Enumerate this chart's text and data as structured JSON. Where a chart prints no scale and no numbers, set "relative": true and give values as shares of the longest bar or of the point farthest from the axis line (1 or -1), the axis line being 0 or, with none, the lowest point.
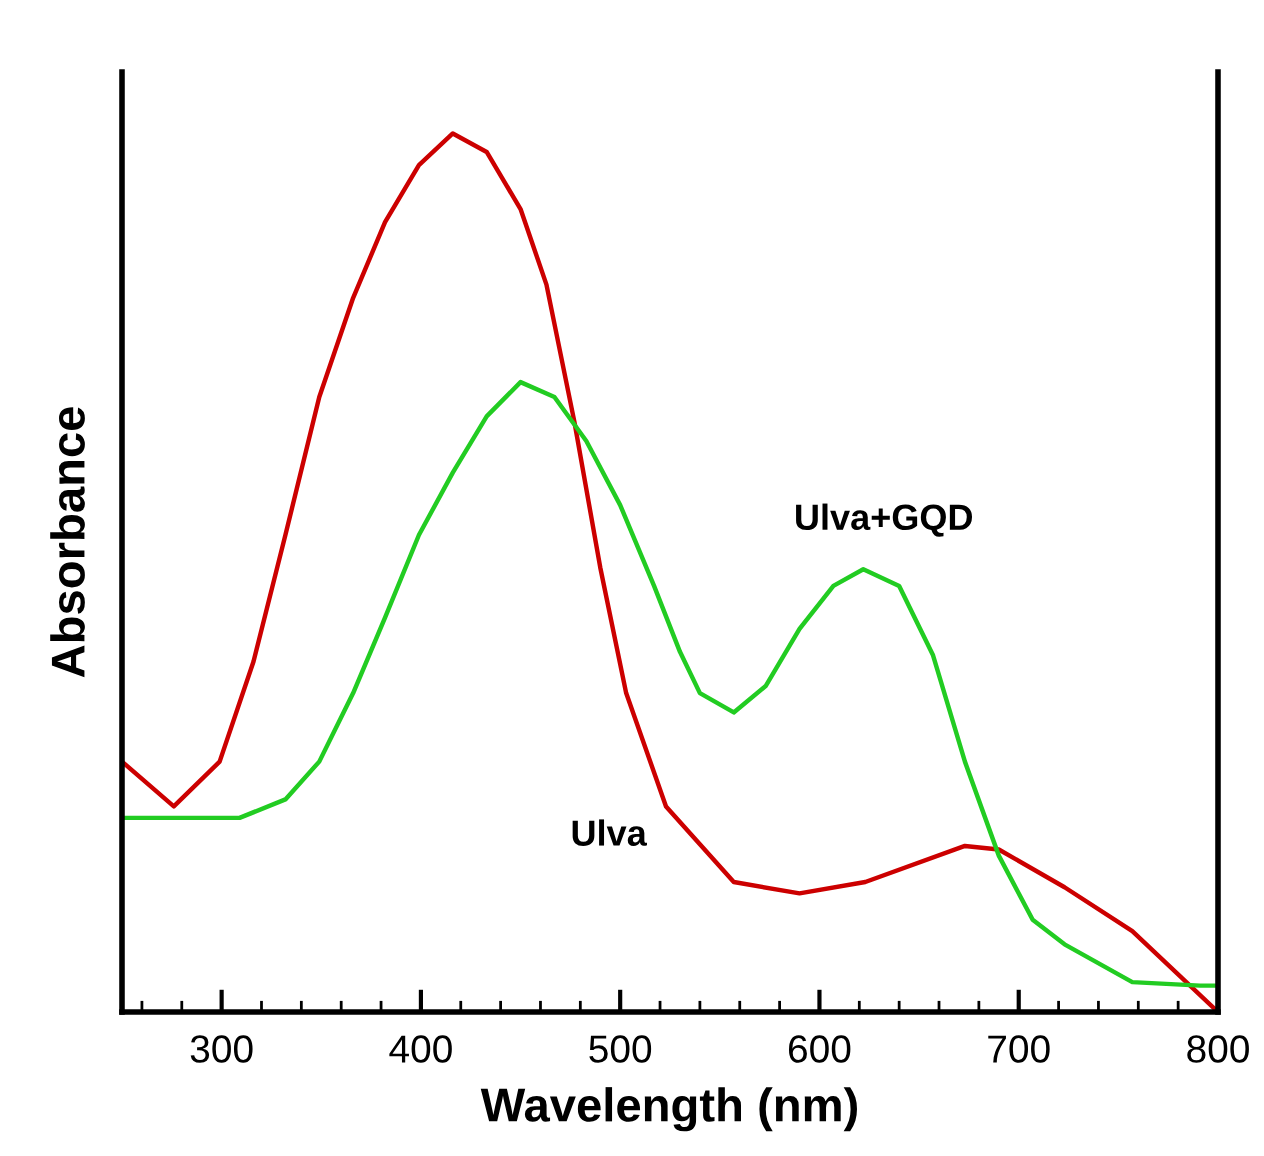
{
  "chart_data": {
    "type": "line",
    "relative": true,
    "xlabel": "Wavelength (nm)",
    "ylabel": "Absorbance",
    "xlim": [
      250,
      800
    ],
    "xticks": [
      {
        "value": 260,
        "label": null
      },
      {
        "value": 280,
        "label": null
      },
      300,
      {
        "value": 320,
        "label": null
      },
      {
        "value": 340,
        "label": null
      },
      {
        "value": 360,
        "label": null
      },
      {
        "value": 380,
        "label": null
      },
      400,
      {
        "value": 420,
        "label": null
      },
      {
        "value": 440,
        "label": null
      },
      {
        "value": 460,
        "label": null
      },
      {
        "value": 480,
        "label": null
      },
      500,
      {
        "value": 520,
        "label": null
      },
      {
        "value": 540,
        "label": null
      },
      {
        "value": 560,
        "label": null
      },
      {
        "value": 580,
        "label": null
      },
      600,
      {
        "value": 620,
        "label": null
      },
      {
        "value": 640,
        "label": null
      },
      {
        "value": 660,
        "label": null
      },
      {
        "value": 680,
        "label": null
      },
      700,
      {
        "value": 720,
        "label": null
      },
      {
        "value": 740,
        "label": null
      },
      {
        "value": 760,
        "label": null
      },
      {
        "value": 780,
        "label": null
      },
      800
    ],
    "tick_labels": "x",
    "grid": false,
    "legend": false,
    "marker": "none",
    "line_style": "solid",
    "series": [
      {
        "name": "Ulva",
        "color": "#cc0000",
        "x": [
          250,
          276,
          299,
          316,
          332,
          349,
          366,
          382,
          399,
          416,
          433,
          450,
          463,
          477,
          490,
          503,
          523,
          557,
          590,
          623,
          673,
          690,
          723,
          757,
          800
        ],
        "values": [
          0.285,
          0.234,
          0.285,
          0.399,
          0.543,
          0.7,
          0.813,
          0.899,
          0.964,
          1.0,
          0.979,
          0.914,
          0.828,
          0.672,
          0.506,
          0.363,
          0.234,
          0.148,
          0.135,
          0.148,
          0.189,
          0.185,
          0.142,
          0.092,
          0.0
        ]
      },
      {
        "name": "Ulva+GQD",
        "color": "#22cc22",
        "x": [
          250,
          309,
          332,
          349,
          366,
          382,
          399,
          416,
          433,
          450,
          467,
          483,
          500,
          517,
          530,
          540,
          557,
          573,
          590,
          607,
          622,
          640,
          657,
          673,
          690,
          707,
          723,
          757,
          791,
          800
        ],
        "values": [
          0.221,
          0.221,
          0.242,
          0.285,
          0.363,
          0.449,
          0.543,
          0.614,
          0.678,
          0.717,
          0.7,
          0.65,
          0.577,
          0.485,
          0.41,
          0.363,
          0.341,
          0.371,
          0.436,
          0.485,
          0.504,
          0.485,
          0.406,
          0.285,
          0.178,
          0.105,
          0.077,
          0.034,
          0.03,
          0.03
        ]
      }
    ]
  }
}
